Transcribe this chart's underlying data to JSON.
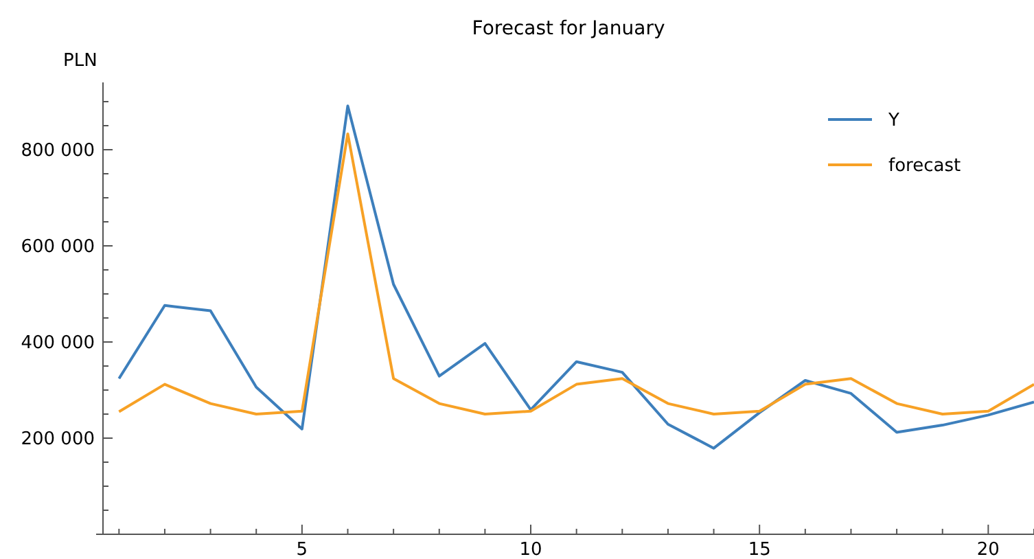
{
  "chart_data": {
    "type": "line",
    "title": "Forecast for January",
    "ylabel": "PLN",
    "x": [
      1,
      2,
      3,
      4,
      5,
      6,
      7,
      8,
      9,
      10,
      11,
      12,
      13,
      14,
      15,
      16,
      17,
      18,
      19,
      20,
      21
    ],
    "series": [
      {
        "name": "Y",
        "color": "#3d7fbc",
        "values": [
          324000,
          476000,
          465000,
          306000,
          219000,
          891000,
          520000,
          329000,
          397000,
          259000,
          359000,
          337000,
          229000,
          179000,
          253000,
          320000,
          293000,
          212000,
          227000,
          248000,
          275000
        ]
      },
      {
        "name": "forecast",
        "color": "#f7a125",
        "values": [
          255000,
          312000,
          272000,
          250000,
          256000,
          833000,
          324000,
          272000,
          250000,
          256000,
          312000,
          324000,
          272000,
          250000,
          256000,
          312000,
          324000,
          272000,
          250000,
          256000,
          312000
        ]
      }
    ],
    "xlim": [
      0.65,
      21
    ],
    "xticks": [
      {
        "value": 1,
        "label": null
      },
      {
        "value": 2,
        "label": null
      },
      {
        "value": 3,
        "label": null
      },
      {
        "value": 4,
        "label": null
      },
      5,
      {
        "value": 6,
        "label": null
      },
      {
        "value": 7,
        "label": null
      },
      {
        "value": 8,
        "label": null
      },
      {
        "value": 9,
        "label": null
      },
      10,
      {
        "value": 11,
        "label": null
      },
      {
        "value": 12,
        "label": null
      },
      {
        "value": 13,
        "label": null
      },
      {
        "value": 14,
        "label": null
      },
      15,
      {
        "value": 16,
        "label": null
      },
      {
        "value": 17,
        "label": null
      },
      {
        "value": 18,
        "label": null
      },
      {
        "value": 19,
        "label": null
      },
      20,
      {
        "value": 21,
        "label": null
      }
    ],
    "ylim": [
      0,
      940000
    ],
    "yticks": [
      {
        "value": 50000,
        "label": null
      },
      {
        "value": 100000,
        "label": null
      },
      {
        "value": 150000,
        "label": null
      },
      {
        "value": 200000,
        "label": "200 000"
      },
      {
        "value": 250000,
        "label": null
      },
      {
        "value": 300000,
        "label": null
      },
      {
        "value": 350000,
        "label": null
      },
      {
        "value": 400000,
        "label": "400 000"
      },
      {
        "value": 450000,
        "label": null
      },
      {
        "value": 500000,
        "label": null
      },
      {
        "value": 550000,
        "label": null
      },
      {
        "value": 600000,
        "label": "600 000"
      },
      {
        "value": 650000,
        "label": null
      },
      {
        "value": 700000,
        "label": null
      },
      {
        "value": 750000,
        "label": null
      },
      {
        "value": 800000,
        "label": "800 000"
      },
      {
        "value": 850000,
        "label": null
      },
      {
        "value": 900000,
        "label": null
      }
    ],
    "grid": false,
    "legend": "top right",
    "marker": "none",
    "line_style": "solid"
  }
}
